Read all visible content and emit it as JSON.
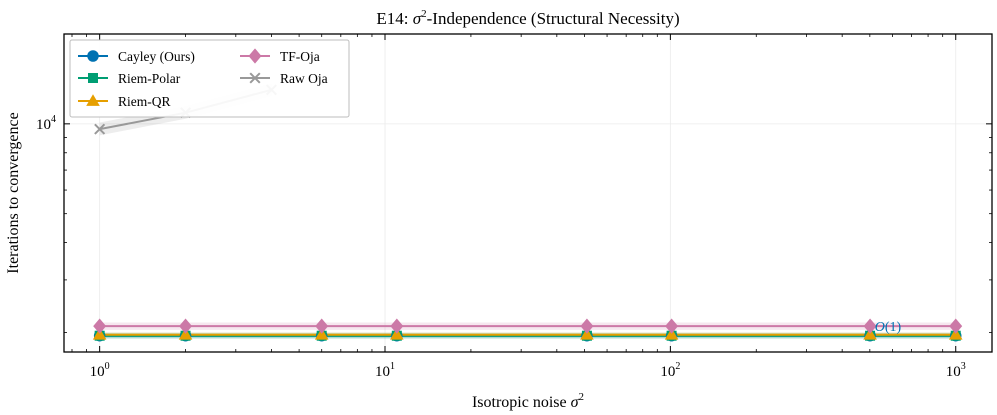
{
  "chart_data": {
    "type": "line",
    "title_prefix": "E14: ",
    "title_symbol": "σ",
    "title_exponent": "2",
    "title_suffix": "-Independence (Structural Necessity)",
    "xlabel_text": "Isotropic noise ",
    "xlabel_symbol": "σ",
    "xlabel_exponent": "2",
    "ylabel": "Iterations to convergence",
    "xscale": "log",
    "yscale": "log",
    "xlim": [
      0.75,
      1340
    ],
    "ylim": [
      1720,
      20000
    ],
    "x_ticks": [
      {
        "value": 1,
        "base": "10",
        "exponent": "0"
      },
      {
        "value": 10,
        "base": "10",
        "exponent": "1"
      },
      {
        "value": 100,
        "base": "10",
        "exponent": "2"
      },
      {
        "value": 1000,
        "base": "10",
        "exponent": "3"
      }
    ],
    "y_ticks": [
      {
        "value": 10000,
        "base": "10",
        "exponent": "4"
      }
    ],
    "y_minor_ticks": [
      2000,
      3000,
      4000,
      5000,
      6000,
      7000,
      8000,
      9000,
      20000
    ],
    "x": [
      1,
      2,
      6,
      11,
      51,
      101,
      501,
      1000
    ],
    "grid": true,
    "legend_position": "upper-left",
    "legend_columns": 2,
    "series": [
      {
        "name": "Cayley (Ours)",
        "color": "#0072b2",
        "marker": "circle",
        "x": [
          1,
          2,
          6,
          11,
          51,
          101,
          501,
          1000
        ],
        "values": [
          1950,
          1950,
          1950,
          1950,
          1950,
          1950,
          1950,
          1950
        ],
        "band_low": [
          1915,
          1915,
          1915,
          1915,
          1915,
          1915,
          1915,
          1915
        ],
        "band_high": [
          1985,
          1985,
          1985,
          1985,
          1985,
          1985,
          1985,
          1985
        ]
      },
      {
        "name": "Riem-Polar",
        "color": "#009e73",
        "marker": "square",
        "x": [
          1,
          2,
          6,
          11,
          51,
          101,
          501,
          1000
        ],
        "values": [
          1950,
          1950,
          1950,
          1950,
          1950,
          1950,
          1950,
          1950
        ],
        "band_low": [
          1905,
          1905,
          1905,
          1905,
          1905,
          1905,
          1905,
          1905
        ],
        "band_high": [
          1995,
          1995,
          1995,
          1995,
          1995,
          1995,
          1995,
          1995
        ]
      },
      {
        "name": "Riem-QR",
        "color": "#e69f00",
        "marker": "triangle",
        "x": [
          1,
          2,
          6,
          11,
          51,
          101,
          501,
          1000
        ],
        "values": [
          1965,
          1965,
          1965,
          1965,
          1965,
          1965,
          1965,
          1965
        ],
        "band_low": [
          1930,
          1930,
          1930,
          1930,
          1930,
          1930,
          1930,
          1930
        ],
        "band_high": [
          2000,
          2000,
          2000,
          2000,
          2000,
          2000,
          2000,
          2000
        ]
      },
      {
        "name": "TF-Oja",
        "color": "#cc79a7",
        "marker": "diamond",
        "x": [
          1,
          2,
          6,
          11,
          51,
          101,
          501,
          1000
        ],
        "values": [
          2100,
          2100,
          2100,
          2100,
          2100,
          2100,
          2100,
          2100
        ],
        "band_low": [
          2040,
          2040,
          2040,
          2040,
          2040,
          2040,
          2040,
          2040
        ],
        "band_high": [
          2160,
          2160,
          2160,
          2160,
          2160,
          2160,
          2160,
          2160
        ]
      },
      {
        "name": "Raw Oja",
        "color": "#999999",
        "marker": "x",
        "x": [
          1,
          2,
          4
        ],
        "values": [
          9600,
          10900,
          13000
        ],
        "band_low": [
          9150,
          10400,
          12400
        ],
        "band_high": [
          10100,
          11450,
          13650
        ]
      }
    ],
    "annotation": {
      "symbol": "O",
      "rest": "(1)",
      "x": 520,
      "y": 2100,
      "color": "#0072b2"
    }
  }
}
